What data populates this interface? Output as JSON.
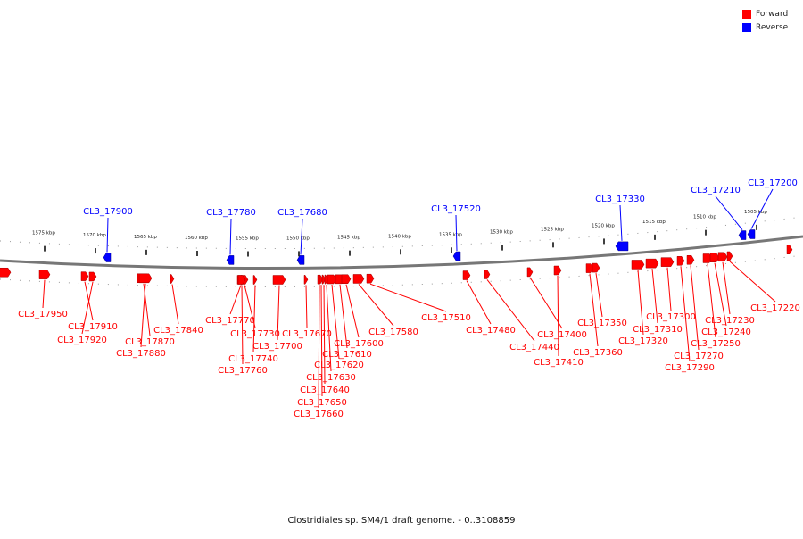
{
  "legend": {
    "forward_label": "Forward",
    "reverse_label": "Reverse",
    "forward_color": "#ff0000",
    "reverse_color": "#0000ff"
  },
  "caption": "Clostridiales sp. SM4/1 draft genome. - 0..3108859",
  "scale_ticks": [
    "1575 kbp",
    "1570 kbp",
    "1565 kbp",
    "1560 kbp",
    "1555 kbp",
    "1550 kbp",
    "1545 kbp",
    "1540 kbp",
    "1535 kbp",
    "1530 kbp",
    "1525 kbp",
    "1520 kbp",
    "1515 kbp",
    "1510 kbp",
    "1505 kbp"
  ],
  "genes_reverse": [
    "CL3_17900",
    "CL3_17780",
    "CL3_17680",
    "CL3_17520",
    "CL3_17330",
    "CL3_17210",
    "CL3_17200"
  ],
  "genes_forward": [
    "CL3_17950",
    "CL3_17910",
    "CL3_17920",
    "CL3_17870",
    "CL3_17880",
    "CL3_17840",
    "CL3_17770",
    "CL3_17730",
    "CL3_17740",
    "CL3_17760",
    "CL3_17700",
    "CL3_17670",
    "CL3_17660",
    "CL3_17650",
    "CL3_17640",
    "CL3_17630",
    "CL3_17620",
    "CL3_17610",
    "CL3_17600",
    "CL3_17580",
    "CL3_17510",
    "CL3_17480",
    "CL3_17440",
    "CL3_17400",
    "CL3_17410",
    "CL3_17360",
    "CL3_17350",
    "CL3_17320",
    "CL3_17310",
    "CL3_17300",
    "CL3_17290",
    "CL3_17270",
    "CL3_17250",
    "CL3_17240",
    "CL3_17230",
    "CL3_17220"
  ]
}
